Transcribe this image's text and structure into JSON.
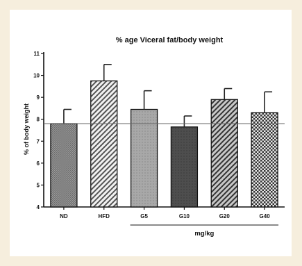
{
  "chart_data": {
    "type": "bar",
    "title": "% age Viceral fat/body weight",
    "ylabel": "% of body weight",
    "xlabel": "",
    "ylim": [
      4,
      11
    ],
    "yticks": [
      4,
      5,
      6,
      7,
      8,
      9,
      10,
      11
    ],
    "categories": [
      "ND",
      "HFD",
      "G5",
      "G10",
      "G20",
      "G40"
    ],
    "values": [
      7.8,
      9.75,
      8.45,
      7.65,
      8.9,
      8.3
    ],
    "errors": [
      0.65,
      0.75,
      0.85,
      0.5,
      0.5,
      0.95
    ],
    "reference_line": 7.8,
    "group_label": "mg/kg",
    "group_span": [
      "G5",
      "G40"
    ],
    "grid": false,
    "legend": "none"
  }
}
